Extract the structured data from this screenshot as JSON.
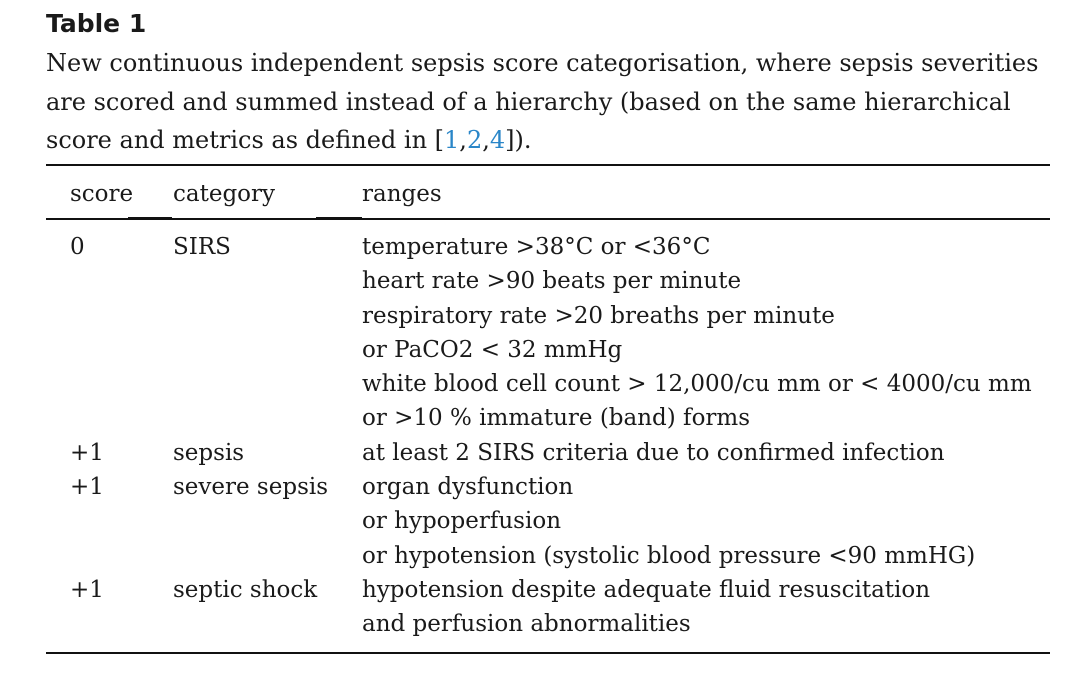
{
  "table": {
    "label": "Table 1",
    "caption_lines": [
      "New continuous independent sepsis score categorisation, where sepsis severities",
      "are scored and summed instead of a hierarchy (based on the same hierarchical"
    ],
    "caption_last_prefix": "score and metrics as defined in [",
    "citations": [
      "1",
      "2",
      "4"
    ],
    "caption_last_suffix": "]).",
    "headers": {
      "score": "score",
      "category": "category",
      "ranges": "ranges"
    },
    "rows": [
      {
        "score": "0",
        "category": "SIRS",
        "ranges": [
          "temperature >38°C or <36°C",
          "heart rate >90 beats per minute",
          "respiratory rate >20 breaths per minute",
          "or PaCO2 < 32 mmHg",
          "white blood cell count > 12,000/cu mm or < 4000/cu mm",
          "or >10 % immature (band) forms"
        ]
      },
      {
        "score": "+1",
        "category": "sepsis",
        "ranges": [
          "at least 2 SIRS criteria due to confirmed infection"
        ]
      },
      {
        "score": "+1",
        "category": "severe sepsis",
        "ranges": [
          "organ dysfunction",
          "or hypoperfusion",
          "or hypotension (systolic blood pressure <90 mmHG)"
        ]
      },
      {
        "score": "+1",
        "category": "septic shock",
        "ranges": [
          "hypotension despite adequate fluid resuscitation",
          "and perfusion abnormalities"
        ]
      }
    ]
  }
}
